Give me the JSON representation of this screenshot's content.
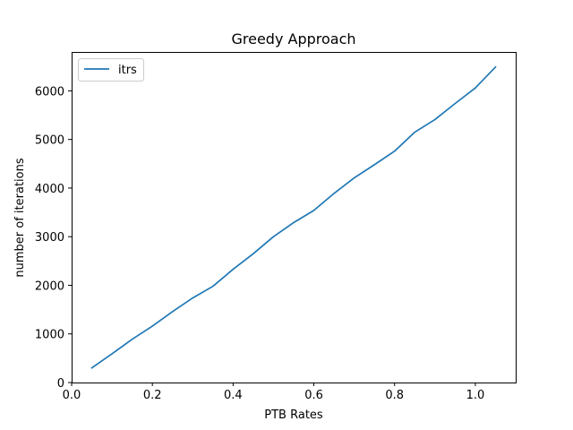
{
  "chart_data": {
    "type": "line",
    "title": "Greedy Approach",
    "xlabel": "PTB Rates",
    "ylabel": "number of iterations",
    "xlim": [
      0.0,
      1.1
    ],
    "ylim": [
      0,
      6800
    ],
    "xticks": [
      0.0,
      0.2,
      0.4,
      0.6,
      0.8,
      1.0
    ],
    "xtick_labels": [
      "0.0",
      "0.2",
      "0.4",
      "0.6",
      "0.8",
      "1.0"
    ],
    "yticks": [
      0,
      1000,
      2000,
      3000,
      4000,
      5000,
      6000
    ],
    "ytick_labels": [
      "0",
      "1000",
      "2000",
      "3000",
      "4000",
      "5000",
      "6000"
    ],
    "grid": false,
    "legend_position": "upper-left",
    "series": [
      {
        "name": "itrs",
        "color": "#1f77b4",
        "x": [
          0.05,
          0.1,
          0.15,
          0.2,
          0.25,
          0.3,
          0.35,
          0.4,
          0.45,
          0.5,
          0.55,
          0.6,
          0.65,
          0.7,
          0.75,
          0.8,
          0.85,
          0.9,
          0.95,
          1.0,
          1.05
        ],
        "y": [
          300,
          590,
          890,
          1160,
          1460,
          1740,
          1980,
          2330,
          2650,
          3000,
          3290,
          3540,
          3890,
          4210,
          4480,
          4760,
          5150,
          5410,
          5740,
          6060,
          6490
        ]
      }
    ]
  }
}
